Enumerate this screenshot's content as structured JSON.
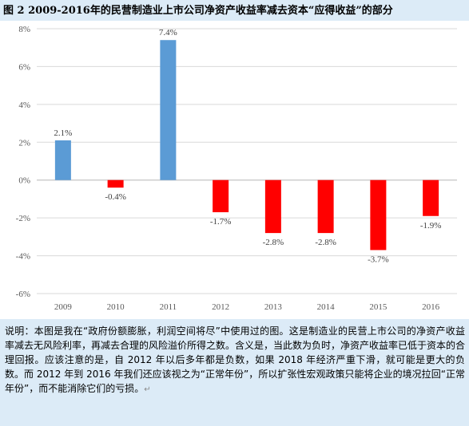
{
  "title": "图 2  2009-2016年的民营制造业上市公司净资产收益率减去资本“应得收益”的部分",
  "note": "说明：本图是我在“政府份额膨胀，利润空间将尽”中使用过的图。这是制造业的民营上市公司的净资产收益率减去无风险利率，再减去合理的风险溢价所得之数。含义是，当此数为负时，净资产收益率已低于资本的合理回报。应该注意的是，自 2012 年以后多年都是负数，如果 2018 年经济严重下滑，就可能是更大的负数。而 2012 年到 2016 年我们还应该视之为“正常年份”，所以扩张性宏观政策只能将企业的境况拉回“正常年份”，而不能消除它们的亏损。",
  "colors": {
    "positive": "#5b9bd5",
    "negative": "#ff0000",
    "grid": "#d9d9d9"
  },
  "chart_data": {
    "type": "bar",
    "categories": [
      "2009",
      "2010",
      "2011",
      "2012",
      "2013",
      "2014",
      "2015",
      "2016"
    ],
    "values": [
      2.1,
      -0.4,
      7.4,
      -1.7,
      -2.8,
      -2.8,
      -3.7,
      -1.9
    ],
    "data_labels": [
      "2.1%",
      "-0.4%",
      "7.4%",
      "-1.7%",
      "-2.8%",
      "-2.8%",
      "-3.7%",
      "-1.9%"
    ],
    "ylim": [
      -6,
      8
    ],
    "yticks": [
      8,
      6,
      4,
      2,
      0,
      -2,
      -4,
      -6
    ],
    "ytick_labels": [
      "8%",
      "6%",
      "4%",
      "2%",
      "0%",
      "-2%",
      "-4%",
      "-6%"
    ],
    "grid": true
  }
}
